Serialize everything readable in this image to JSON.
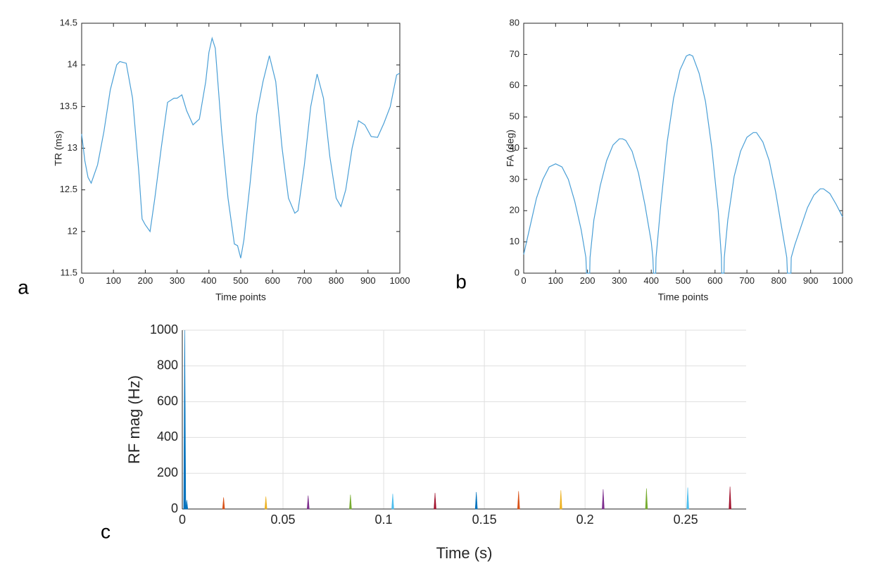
{
  "chart_data": [
    {
      "type": "line",
      "panel_label": "a",
      "xlabel": "Time points",
      "ylabel": "TR (ms)",
      "xlim": [
        0,
        1000
      ],
      "ylim": [
        11.5,
        14.5
      ],
      "xticks": [
        0,
        100,
        200,
        300,
        400,
        500,
        600,
        700,
        800,
        900,
        1000
      ],
      "yticks": [
        11.5,
        12,
        12.5,
        13,
        13.5,
        14,
        14.5
      ],
      "grid": false,
      "series": [
        {
          "color": "#4a9fd6",
          "x": [
            0,
            10,
            20,
            30,
            50,
            70,
            90,
            110,
            120,
            140,
            160,
            180,
            190,
            200,
            215,
            230,
            250,
            270,
            290,
            300,
            315,
            330,
            350,
            370,
            390,
            400,
            410,
            420,
            440,
            460,
            480,
            490,
            500,
            510,
            530,
            550,
            570,
            590,
            610,
            630,
            650,
            670,
            680,
            700,
            720,
            740,
            760,
            780,
            800,
            815,
            830,
            850,
            870,
            890,
            910,
            930,
            950,
            970,
            990,
            1000
          ],
          "values": [
            13.17,
            12.85,
            12.65,
            12.58,
            12.8,
            13.2,
            13.7,
            14.0,
            14.04,
            14.02,
            13.6,
            12.7,
            12.15,
            12.08,
            12.0,
            12.4,
            13.0,
            13.55,
            13.6,
            13.6,
            13.64,
            13.45,
            13.28,
            13.35,
            13.8,
            14.15,
            14.32,
            14.2,
            13.2,
            12.4,
            11.85,
            11.83,
            11.68,
            11.9,
            12.6,
            13.4,
            13.8,
            14.11,
            13.8,
            13.0,
            12.4,
            12.22,
            12.25,
            12.8,
            13.5,
            13.89,
            13.6,
            12.9,
            12.4,
            12.3,
            12.5,
            13.0,
            13.33,
            13.28,
            13.14,
            13.13,
            13.3,
            13.5,
            13.88,
            13.9
          ]
        }
      ]
    },
    {
      "type": "line",
      "panel_label": "b",
      "xlabel": "Time points",
      "ylabel": "FA (deg)",
      "xlim": [
        0,
        1000
      ],
      "ylim": [
        0,
        80
      ],
      "xticks": [
        0,
        100,
        200,
        300,
        400,
        500,
        600,
        700,
        800,
        900,
        1000
      ],
      "yticks": [
        0,
        10,
        20,
        30,
        40,
        50,
        60,
        70,
        80
      ],
      "grid": false,
      "series": [
        {
          "color": "#4a9fd6",
          "x": [
            0,
            20,
            40,
            60,
            80,
            100,
            120,
            140,
            160,
            180,
            195,
            197,
            207,
            208,
            220,
            240,
            260,
            280,
            300,
            310,
            320,
            340,
            360,
            380,
            400,
            405,
            407,
            414,
            415,
            430,
            450,
            470,
            490,
            510,
            520,
            530,
            550,
            570,
            590,
            610,
            620,
            621,
            628,
            629,
            640,
            660,
            680,
            700,
            720,
            730,
            750,
            770,
            790,
            810,
            825,
            827,
            838,
            839,
            850,
            870,
            890,
            910,
            930,
            940,
            960,
            980,
            995,
            1000
          ],
          "values": [
            6,
            15,
            24,
            30,
            34,
            35,
            34,
            30,
            23,
            14,
            5,
            0,
            0,
            5,
            17,
            28,
            36,
            41,
            43,
            43,
            42.5,
            39,
            32,
            22,
            10,
            5,
            0,
            0,
            5,
            22,
            42,
            56,
            65,
            69.5,
            70,
            69.5,
            64,
            55,
            40,
            20,
            5,
            0,
            0,
            5,
            17,
            31,
            39,
            43.5,
            45,
            45,
            42,
            36,
            26,
            14,
            5,
            0,
            0,
            5,
            9,
            15,
            21,
            25,
            27,
            27,
            25.5,
            22,
            19,
            18
          ]
        }
      ]
    },
    {
      "type": "spike",
      "panel_label": "c",
      "xlabel": "Time (s)",
      "ylabel": "RF mag (Hz)",
      "xlim": [
        0,
        0.28
      ],
      "ylim": [
        0,
        1000
      ],
      "xticks": [
        0,
        0.05,
        0.1,
        0.15,
        0.2,
        0.25
      ],
      "yticks": [
        0,
        200,
        400,
        600,
        800,
        1000
      ],
      "grid": true,
      "series": [
        {
          "color": "#0072bd",
          "x": [
            0.0012,
            0.0022
          ],
          "values": [
            1000,
            50
          ]
        },
        {
          "color": "#d95319",
          "x": [
            0.0205
          ],
          "values": [
            65
          ]
        },
        {
          "color": "#edb120",
          "x": [
            0.0415
          ],
          "values": [
            70
          ]
        },
        {
          "color": "#7e2f8e",
          "x": [
            0.0625
          ],
          "values": [
            75
          ]
        },
        {
          "color": "#77ac30",
          "x": [
            0.0835
          ],
          "values": [
            80
          ]
        },
        {
          "color": "#4dbeee",
          "x": [
            0.1045
          ],
          "values": [
            85
          ]
        },
        {
          "color": "#a2142f",
          "x": [
            0.1255
          ],
          "values": [
            90
          ]
        },
        {
          "color": "#0072bd",
          "x": [
            0.146
          ],
          "values": [
            95
          ]
        },
        {
          "color": "#d95319",
          "x": [
            0.167
          ],
          "values": [
            100
          ]
        },
        {
          "color": "#edb120",
          "x": [
            0.188
          ],
          "values": [
            105
          ]
        },
        {
          "color": "#7e2f8e",
          "x": [
            0.209
          ],
          "values": [
            110
          ]
        },
        {
          "color": "#77ac30",
          "x": [
            0.2305
          ],
          "values": [
            115
          ]
        },
        {
          "color": "#4dbeee",
          "x": [
            0.251
          ],
          "values": [
            120
          ]
        },
        {
          "color": "#a2142f",
          "x": [
            0.272
          ],
          "values": [
            125
          ]
        }
      ]
    }
  ]
}
